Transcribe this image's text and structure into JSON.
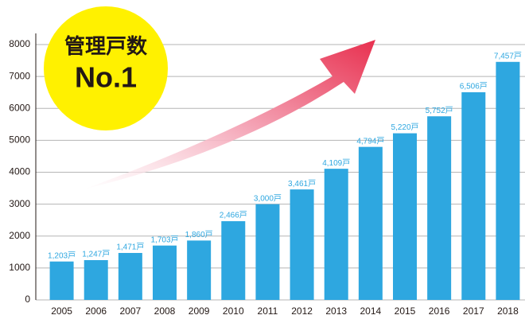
{
  "chart_data": {
    "type": "bar",
    "categories": [
      "2005",
      "2006",
      "2007",
      "2008",
      "2009",
      "2010",
      "2011",
      "2012",
      "2013",
      "2014",
      "2015",
      "2016",
      "2017",
      "2018"
    ],
    "values": [
      1203,
      1247,
      1471,
      1703,
      1860,
      2466,
      3000,
      3461,
      4109,
      4794,
      5220,
      5752,
      6506,
      7457
    ],
    "value_labels": [
      "1,203戸",
      "1,247戸",
      "1,471戸",
      "1,703戸",
      "1,860戸",
      "2,466戸",
      "3,000戸",
      "3,461戸",
      "4,109戸",
      "4,794戸",
      "5,220戸",
      "5,752戸",
      "6,506戸",
      "7,457戸"
    ],
    "color": "#2ea7e0",
    "ylim": [
      0,
      8000
    ],
    "yticks": [
      0,
      1000,
      2000,
      3000,
      4000,
      5000,
      6000,
      7000,
      8000
    ],
    "grid": true,
    "annotations": [
      "管理戸数",
      "No.1"
    ]
  }
}
